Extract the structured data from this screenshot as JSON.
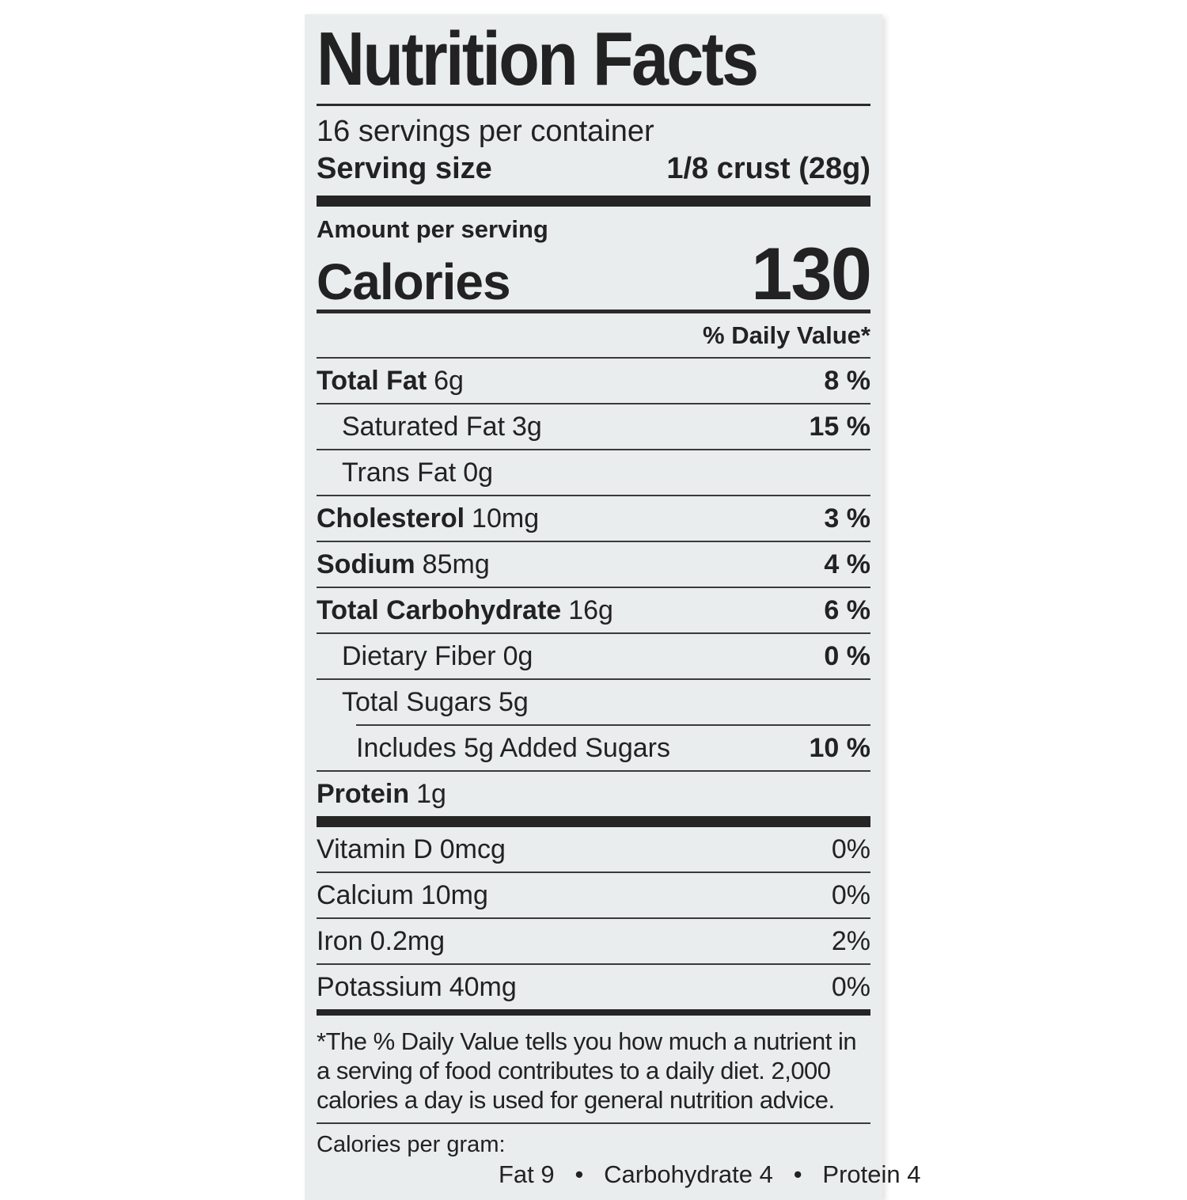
{
  "label": {
    "title": "Nutrition Facts",
    "servings_per_container": "16 servings per container",
    "serving_size_label": "Serving size",
    "serving_size_value": "1/8 crust (28g)",
    "amount_per_serving": "Amount per serving",
    "calories_label": "Calories",
    "calories_value": "130",
    "daily_value_header": "% Daily Value*",
    "nutrients": [
      {
        "name": "Total Fat",
        "amount": "6g",
        "dv": "8 %"
      },
      {
        "name": "Saturated Fat",
        "amount": "3g",
        "dv": "15 %"
      },
      {
        "name": "Trans Fat",
        "amount": "0g",
        "dv": ""
      },
      {
        "name": "Cholesterol",
        "amount": "10mg",
        "dv": "3 %"
      },
      {
        "name": "Sodium",
        "amount": "85mg",
        "dv": "4 %"
      },
      {
        "name": "Total Carbohydrate",
        "amount": "16g",
        "dv": "6 %"
      },
      {
        "name": "Dietary Fiber",
        "amount": "0g",
        "dv": "0 %"
      },
      {
        "name": "Total Sugars",
        "amount": "5g",
        "dv": ""
      },
      {
        "name": "Includes 5g Added Sugars",
        "amount": "",
        "dv": "10 %"
      },
      {
        "name": "Protein",
        "amount": "1g",
        "dv": ""
      }
    ],
    "vitamins": [
      {
        "name": "Vitamin D",
        "amount": "0mcg",
        "dv": "0%"
      },
      {
        "name": "Calcium",
        "amount": "10mg",
        "dv": "0%"
      },
      {
        "name": "Iron",
        "amount": "0.2mg",
        "dv": "2%"
      },
      {
        "name": "Potassium",
        "amount": "40mg",
        "dv": "0%"
      }
    ],
    "footnote": "*The % Daily Value tells you how much a nutrient in a serving of food contributes to a daily diet. 2,000 calories a day is used for general nutrition advice.",
    "calories_per_gram_label": "Calories per gram:",
    "calories_per_gram_values": "Fat 9   •   Carbohydrate 4   •   Protein 4"
  },
  "colors": {
    "label_background": "#e9edee",
    "page_background": "#ffffff",
    "text": "#222222",
    "rule": "#3a3a3a"
  }
}
